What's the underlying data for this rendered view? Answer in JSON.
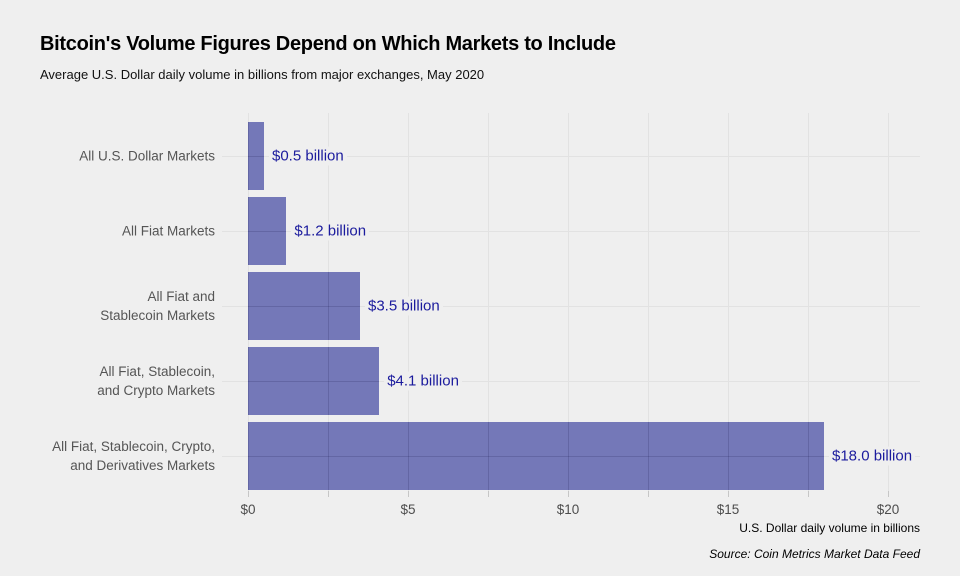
{
  "header": {
    "title": "Bitcoin's Volume Figures Depend on Which Markets to Include",
    "subtitle": "Average U.S. Dollar daily volume in billions from major exchanges, May 2020"
  },
  "chart_data": {
    "type": "bar",
    "orientation": "horizontal",
    "title": "Bitcoin's Volume Figures Depend on Which Markets to Include",
    "subtitle": "Average U.S. Dollar daily volume in billions from major exchanges, May 2020",
    "categories": [
      "All U.S. Dollar Markets",
      "All Fiat Markets",
      "All Fiat and\nStablecoin Markets",
      "All Fiat, Stablecoin,\nand Crypto Markets",
      "All Fiat, Stablecoin, Crypto,\nand Derivatives Markets"
    ],
    "values": [
      0.5,
      1.2,
      3.5,
      4.1,
      18.0
    ],
    "value_labels": [
      "$0.5 billion",
      "$1.2 billion",
      "$3.5 billion",
      "$4.1 billion",
      "$18.0 billion"
    ],
    "xlim": [
      0,
      20
    ],
    "x_major_ticks": [
      0,
      5,
      10,
      15,
      20
    ],
    "x_major_tick_labels": [
      "$0",
      "$5",
      "$10",
      "$15",
      "$20"
    ],
    "x_minor_step": 2.5,
    "xlabel": "U.S. Dollar daily volume in billions",
    "source": "Source: Coin Metrics Market Data Feed",
    "grid": "on",
    "legend": "none",
    "colors": {
      "bar": "#7478b8",
      "bar_gridline_overlay": "rgba(10,10,60,0.16)",
      "value_label": "#1b1b9d",
      "background": "#efefef",
      "gridline": "#e2e2e2",
      "tick": "#c6c6c6",
      "axis_text": "#4d4d4d",
      "category_text": "#555555"
    }
  }
}
